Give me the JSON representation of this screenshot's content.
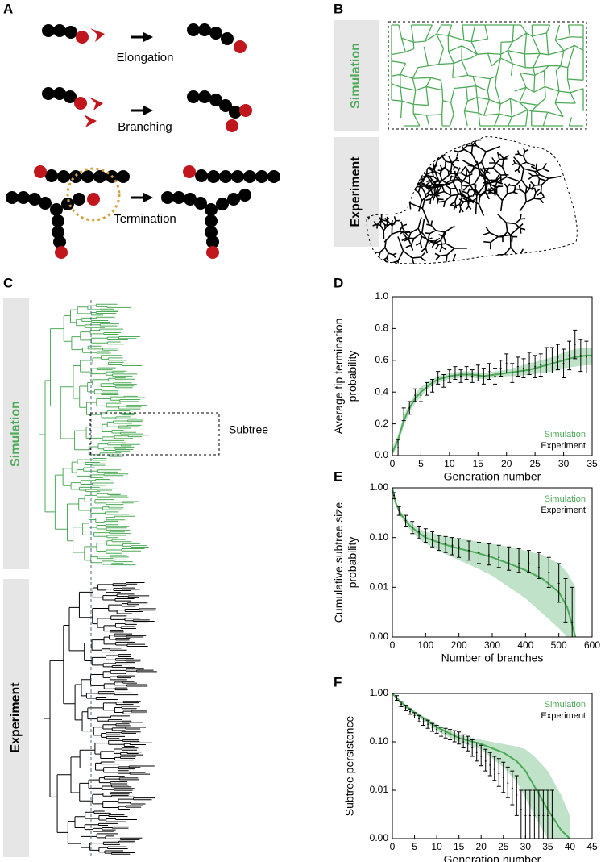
{
  "panel_labels": [
    "A",
    "B",
    "C",
    "D",
    "E",
    "F"
  ],
  "panel_a": {
    "steps": [
      "Elongation",
      "Branching",
      "Termination"
    ]
  },
  "panel_b": {
    "rows": [
      "Simulation",
      "Experiment"
    ]
  },
  "panel_c": {
    "rows": [
      "Simulation",
      "Experiment"
    ],
    "annotation": "Subtree"
  },
  "chart_data": [
    {
      "type": "line",
      "xlabel": "Generation number",
      "ylabel": [
        "Average tip termination",
        "probability"
      ],
      "xlim": [
        0,
        35
      ],
      "xticks": [
        0,
        5,
        10,
        15,
        20,
        25,
        30,
        35
      ],
      "ylim": [
        0,
        1
      ],
      "yticks": [
        {
          "value": 0,
          "label": "0.0"
        },
        0.2,
        0.4,
        0.6,
        0.8,
        {
          "value": 1,
          "label": "1.0"
        }
      ],
      "log": false,
      "legend": "lower right",
      "series": [
        {
          "name": "Simulation",
          "color": "#4daa57",
          "band_color": "#bfe2c8",
          "x": [
            0,
            1,
            2,
            3,
            4,
            5,
            6,
            7,
            8,
            9,
            10,
            12,
            14,
            16,
            18,
            20,
            22,
            24,
            26,
            28,
            30,
            32,
            34,
            35
          ],
          "values": [
            0.02,
            0.1,
            0.22,
            0.3,
            0.36,
            0.4,
            0.43,
            0.46,
            0.48,
            0.49,
            0.5,
            0.51,
            0.51,
            0.5,
            0.51,
            0.52,
            0.53,
            0.54,
            0.56,
            0.58,
            0.6,
            0.62,
            0.63,
            0.63
          ],
          "lower": [
            0,
            0.07,
            0.19,
            0.27,
            0.33,
            0.37,
            0.41,
            0.44,
            0.46,
            0.47,
            0.48,
            0.49,
            0.49,
            0.48,
            0.49,
            0.5,
            0.5,
            0.51,
            0.52,
            0.53,
            0.55,
            0.56,
            0.57,
            0.57
          ],
          "upper": [
            0.05,
            0.13,
            0.25,
            0.33,
            0.39,
            0.43,
            0.46,
            0.48,
            0.5,
            0.51,
            0.52,
            0.53,
            0.53,
            0.52,
            0.53,
            0.54,
            0.56,
            0.58,
            0.6,
            0.62,
            0.65,
            0.67,
            0.68,
            0.68
          ]
        },
        {
          "name": "Experiment",
          "color": "#000000",
          "x": [
            1,
            2,
            3,
            4,
            5,
            6,
            7,
            8,
            9,
            10,
            11,
            12,
            13,
            14,
            15,
            16,
            17,
            18,
            19,
            20,
            21,
            22,
            23,
            24,
            25,
            26,
            27,
            28,
            29,
            30,
            31,
            32,
            33,
            34
          ],
          "values": [
            0.05,
            0.26,
            0.3,
            0.38,
            0.38,
            0.42,
            0.44,
            0.49,
            0.47,
            0.5,
            0.52,
            0.5,
            0.52,
            0.5,
            0.52,
            0.5,
            0.53,
            0.5,
            0.55,
            0.58,
            0.52,
            0.56,
            0.55,
            0.58,
            0.56,
            0.57,
            0.6,
            0.6,
            0.62,
            0.58,
            0.63,
            0.7,
            0.63,
            0.62
          ],
          "errors": [
            0.05,
            0.04,
            0.04,
            0.04,
            0.04,
            0.04,
            0.04,
            0.04,
            0.04,
            0.04,
            0.04,
            0.04,
            0.04,
            0.04,
            0.05,
            0.05,
            0.05,
            0.05,
            0.05,
            0.06,
            0.06,
            0.06,
            0.06,
            0.07,
            0.07,
            0.07,
            0.08,
            0.08,
            0.08,
            0.09,
            0.09,
            0.09,
            0.1,
            0.1
          ]
        }
      ]
    },
    {
      "type": "line",
      "xlabel": "Number of branches",
      "ylabel": [
        "Cumulative subtree size",
        "probability"
      ],
      "xlim": [
        0,
        600
      ],
      "xticks": [
        0,
        100,
        200,
        300,
        400,
        500,
        600
      ],
      "ylim": [
        0.001,
        1
      ],
      "yticks": [
        {
          "value": 0.001,
          "label": "0.00"
        },
        {
          "value": 0.01,
          "label": "0.01"
        },
        {
          "value": 0.1,
          "label": "0.10"
        },
        {
          "value": 1,
          "label": "1.00"
        }
      ],
      "log": true,
      "legend": "upper right",
      "series": [
        {
          "name": "Simulation",
          "color": "#4daa57",
          "band_color": "#bfe2c8",
          "x": [
            0,
            10,
            25,
            50,
            75,
            100,
            150,
            200,
            250,
            300,
            350,
            400,
            450,
            500,
            525,
            550
          ],
          "values": [
            1,
            0.5,
            0.3,
            0.18,
            0.13,
            0.1,
            0.075,
            0.06,
            0.05,
            0.04,
            0.03,
            0.022,
            0.015,
            0.008,
            0.004,
            0.001
          ],
          "lower": [
            1,
            0.45,
            0.26,
            0.15,
            0.1,
            0.075,
            0.05,
            0.035,
            0.025,
            0.017,
            0.01,
            0.006,
            0.003,
            0.0015,
            0.001,
            0.001
          ],
          "upper": [
            1,
            0.55,
            0.34,
            0.21,
            0.16,
            0.13,
            0.11,
            0.095,
            0.085,
            0.075,
            0.065,
            0.055,
            0.045,
            0.03,
            0.02,
            0.01
          ]
        },
        {
          "name": "Experiment",
          "color": "#000000",
          "x": [
            5,
            20,
            40,
            60,
            80,
            100,
            120,
            140,
            160,
            180,
            200,
            230,
            260,
            290,
            320,
            350,
            380,
            410,
            440,
            470,
            500,
            520,
            540
          ],
          "values": [
            0.7,
            0.35,
            0.22,
            0.16,
            0.13,
            0.11,
            0.09,
            0.08,
            0.075,
            0.07,
            0.065,
            0.055,
            0.05,
            0.045,
            0.04,
            0.035,
            0.03,
            0.03,
            0.025,
            0.02,
            0.012,
            0.006,
            0.002
          ],
          "lower": [
            0.6,
            0.28,
            0.17,
            0.12,
            0.095,
            0.08,
            0.065,
            0.055,
            0.05,
            0.045,
            0.04,
            0.035,
            0.03,
            0.028,
            0.025,
            0.022,
            0.02,
            0.02,
            0.015,
            0.01,
            0.005,
            0.002,
            0.001
          ],
          "upper": [
            0.8,
            0.42,
            0.28,
            0.21,
            0.17,
            0.15,
            0.13,
            0.11,
            0.105,
            0.1,
            0.095,
            0.085,
            0.08,
            0.075,
            0.07,
            0.065,
            0.06,
            0.055,
            0.05,
            0.04,
            0.03,
            0.015,
            0.01
          ]
        }
      ]
    },
    {
      "type": "line",
      "xlabel": "Generation number",
      "ylabel": [
        "Subtree persistence"
      ],
      "xlim": [
        0,
        45
      ],
      "xticks": [
        0,
        5,
        10,
        15,
        20,
        25,
        30,
        35,
        40,
        45
      ],
      "ylim": [
        0.001,
        1
      ],
      "yticks": [
        {
          "value": 0.001,
          "label": "0.00"
        },
        {
          "value": 0.01,
          "label": "0.01"
        },
        {
          "value": 0.1,
          "label": "0.10"
        },
        {
          "value": 1,
          "label": "1.00"
        }
      ],
      "log": true,
      "legend": "upper right",
      "series": [
        {
          "name": "Simulation",
          "color": "#4daa57",
          "band_color": "#bfe2c8",
          "x": [
            0,
            2,
            5,
            8,
            10,
            15,
            20,
            25,
            28,
            30,
            32,
            35,
            38,
            40
          ],
          "values": [
            1,
            0.65,
            0.4,
            0.27,
            0.2,
            0.12,
            0.09,
            0.06,
            0.04,
            0.025,
            0.012,
            0.004,
            0.0015,
            0.001
          ],
          "lower": [
            1,
            0.6,
            0.36,
            0.24,
            0.17,
            0.1,
            0.07,
            0.03,
            0.015,
            0.007,
            0.003,
            0.001,
            0.001,
            0.001
          ],
          "upper": [
            1,
            0.7,
            0.44,
            0.3,
            0.23,
            0.14,
            0.11,
            0.09,
            0.08,
            0.07,
            0.05,
            0.025,
            0.008,
            0.003
          ]
        },
        {
          "name": "Experiment",
          "color": "#000000",
          "x": [
            1,
            2,
            3,
            4,
            5,
            6,
            7,
            8,
            9,
            10,
            11,
            12,
            13,
            14,
            15,
            16,
            17,
            18,
            19,
            20,
            21,
            22,
            23,
            24,
            25,
            26,
            27,
            28,
            29,
            30,
            31,
            32,
            33,
            34,
            35,
            36
          ],
          "values": [
            0.8,
            0.6,
            0.5,
            0.42,
            0.35,
            0.3,
            0.26,
            0.23,
            0.2,
            0.18,
            0.16,
            0.15,
            0.14,
            0.13,
            0.12,
            0.1,
            0.09,
            0.075,
            0.06,
            0.05,
            0.04,
            0.033,
            0.027,
            0.022,
            0.018,
            0.014,
            0.011,
            0.008,
            0.004,
            0.003,
            0.003,
            0.003,
            0.003,
            0.003,
            0.003,
            0.003
          ],
          "lower": [
            0.72,
            0.53,
            0.44,
            0.37,
            0.31,
            0.26,
            0.22,
            0.19,
            0.165,
            0.15,
            0.13,
            0.12,
            0.11,
            0.1,
            0.09,
            0.075,
            0.065,
            0.05,
            0.04,
            0.032,
            0.025,
            0.02,
            0.016,
            0.012,
            0.009,
            0.007,
            0.005,
            0.003,
            0.001,
            0.001,
            0.001,
            0.001,
            0.001,
            0.001,
            0.001,
            0.001
          ],
          "upper": [
            0.9,
            0.68,
            0.57,
            0.48,
            0.4,
            0.35,
            0.31,
            0.28,
            0.24,
            0.22,
            0.2,
            0.19,
            0.18,
            0.17,
            0.16,
            0.14,
            0.13,
            0.11,
            0.095,
            0.085,
            0.07,
            0.06,
            0.05,
            0.045,
            0.038,
            0.03,
            0.025,
            0.02,
            0.01,
            0.01,
            0.01,
            0.01,
            0.01,
            0.01,
            0.01,
            0.01
          ]
        }
      ]
    }
  ]
}
